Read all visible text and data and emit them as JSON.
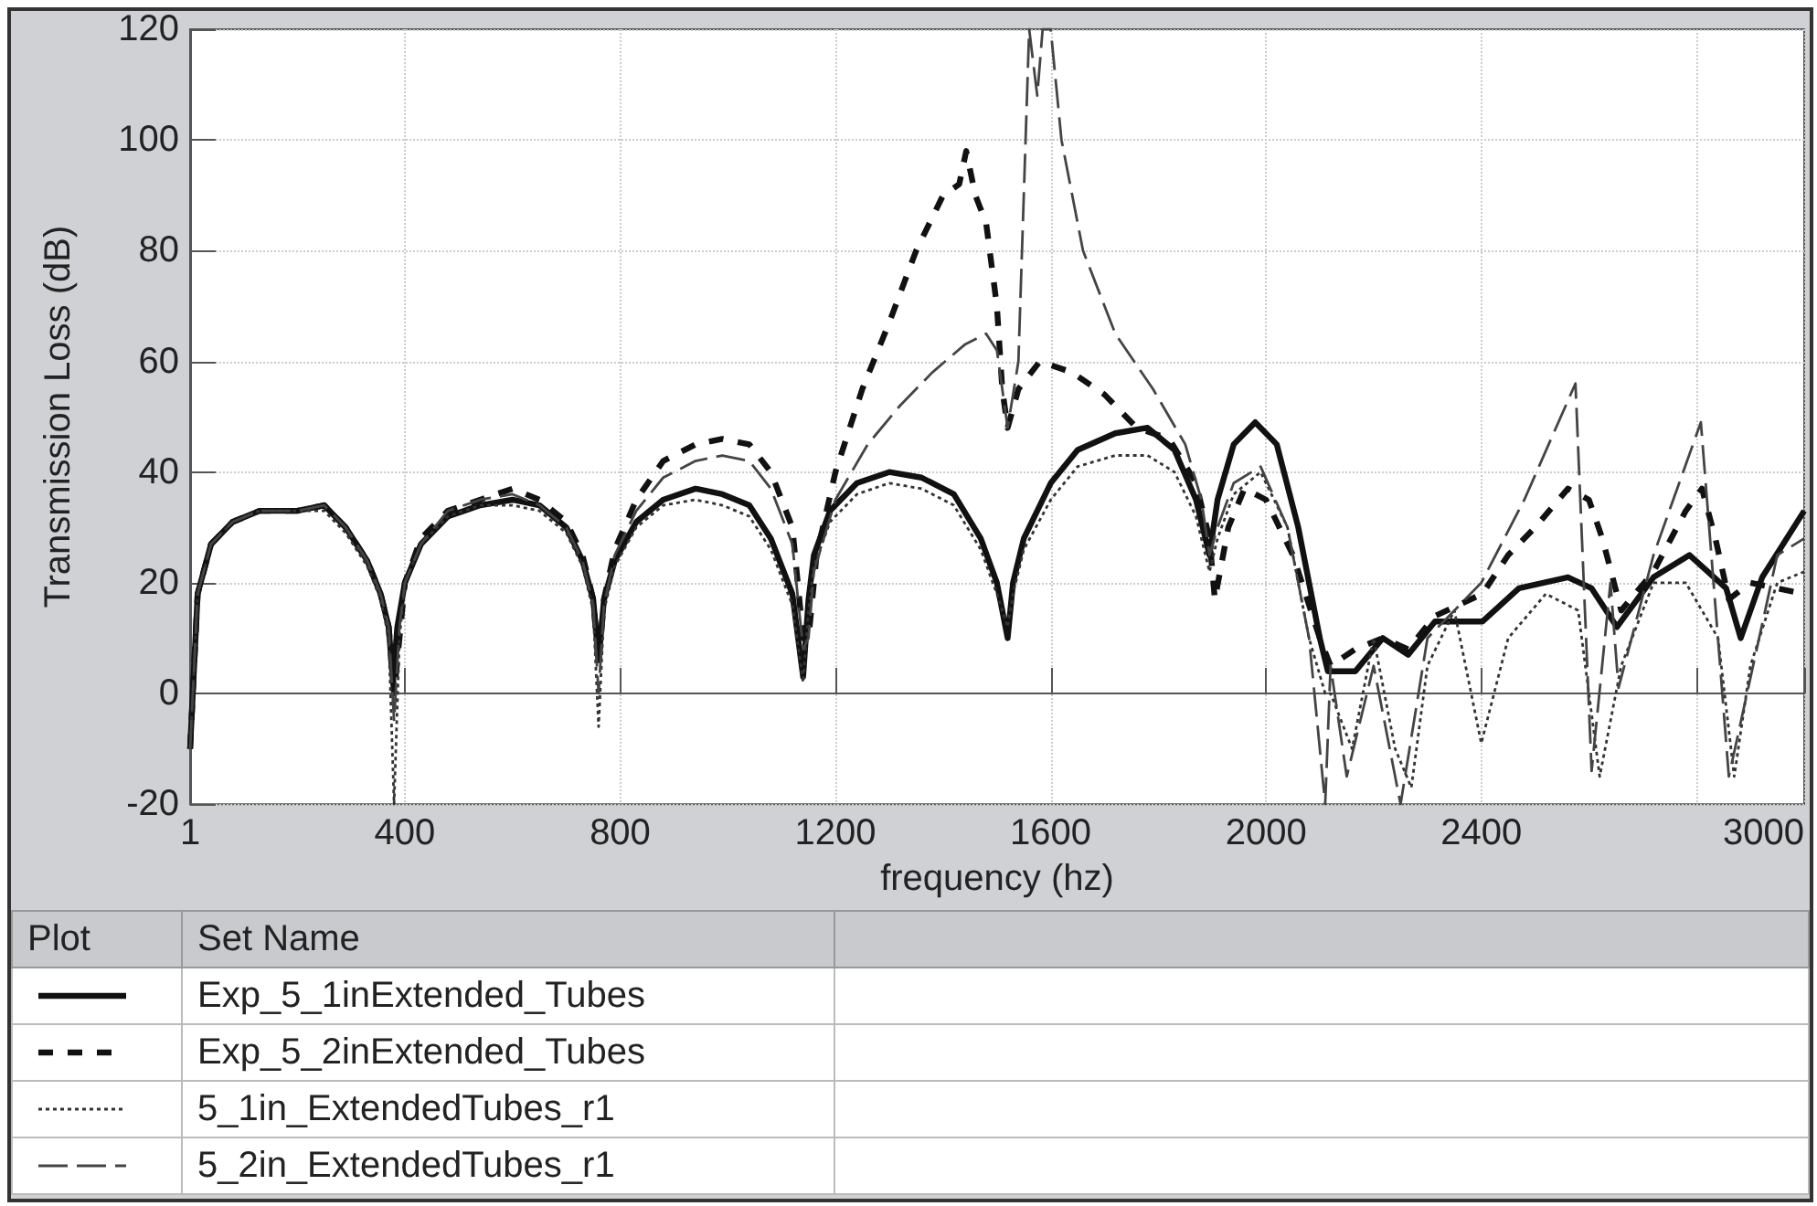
{
  "chart_data": {
    "type": "line",
    "xlabel": "frequency (hz)",
    "ylabel": "Transmission Loss (dB)",
    "legend_title": "Set Name",
    "annotations": [
      "Plot"
    ],
    "xlim": [
      1,
      3000
    ],
    "xticks": [
      1,
      400,
      800,
      1200,
      1600,
      2000,
      2400,
      {
        "value": 2800,
        "label": null
      },
      3000
    ],
    "ylim": [
      -20,
      120
    ],
    "yticks": [
      -20,
      0,
      20,
      40,
      60,
      80,
      100,
      120
    ],
    "grid": true,
    "legend": "bottom",
    "marker": "none",
    "series": [
      {
        "name": "Exp_5_1inExtended_Tubes",
        "color": "#111111",
        "line_style": "solid",
        "x": [
          1,
          15,
          40,
          80,
          130,
          200,
          250,
          290,
          330,
          355,
          370,
          378,
          386,
          400,
          430,
          480,
          540,
          600,
          650,
          700,
          730,
          750,
          760,
          770,
          790,
          830,
          880,
          940,
          990,
          1040,
          1080,
          1120,
          1140,
          1150,
          1160,
          1190,
          1240,
          1300,
          1360,
          1420,
          1470,
          1500,
          1520,
          1530,
          1550,
          1600,
          1650,
          1720,
          1780,
          1830,
          1870,
          1895,
          1910,
          1940,
          1980,
          2020,
          2060,
          2100,
          2115,
          2166,
          2217,
          2264,
          2314,
          2402,
          2470,
          2561,
          2605,
          2652,
          2720,
          2787,
          2855,
          2882,
          2922,
          3000
        ],
        "values": [
          -10,
          18,
          27,
          31,
          33,
          33,
          34,
          30,
          24,
          18,
          12,
          2,
          12,
          20,
          27,
          32,
          34,
          35,
          34,
          30,
          24,
          17,
          6,
          17,
          24,
          31,
          35,
          37,
          36,
          34,
          28,
          18,
          3,
          17,
          25,
          33,
          38,
          40,
          39,
          36,
          28,
          20,
          10,
          20,
          28,
          38,
          44,
          47,
          48,
          44,
          35,
          25,
          35,
          45,
          49,
          45,
          30,
          10,
          4,
          4,
          10,
          7,
          13,
          13,
          19,
          21,
          19,
          12,
          21,
          25,
          19,
          10,
          21,
          33
        ]
      },
      {
        "name": "Exp_5_2inExtended_Tubes",
        "color": "#111111",
        "line_style": "dashed",
        "x": [
          1,
          15,
          40,
          80,
          130,
          200,
          250,
          290,
          330,
          355,
          370,
          380,
          390,
          400,
          430,
          480,
          540,
          600,
          650,
          700,
          730,
          750,
          760,
          770,
          790,
          830,
          880,
          940,
          990,
          1040,
          1080,
          1120,
          1140,
          1150,
          1165,
          1200,
          1250,
          1300,
          1350,
          1400,
          1430,
          1443,
          1460,
          1480,
          1500,
          1510,
          1520,
          1540,
          1580,
          1640,
          1700,
          1760,
          1820,
          1870,
          1895,
          1905,
          1930,
          1960,
          2000,
          2050,
          2100,
          2120,
          2166,
          2217,
          2264,
          2314,
          2402,
          2450,
          2500,
          2561,
          2600,
          2625,
          2660,
          2720,
          2780,
          2810,
          2835,
          2860,
          2900,
          2950,
          3000
        ],
        "values": [
          -10,
          18,
          27,
          31,
          33,
          33,
          34,
          30,
          24,
          18,
          12,
          0,
          10,
          20,
          28,
          33,
          35,
          37,
          35,
          31,
          25,
          17,
          5,
          17,
          26,
          35,
          42,
          45,
          46,
          45,
          40,
          30,
          10,
          10,
          25,
          40,
          55,
          67,
          80,
          90,
          92,
          98,
          90,
          85,
          70,
          55,
          48,
          55,
          60,
          58,
          54,
          48,
          46,
          38,
          28,
          17,
          30,
          37,
          35,
          25,
          10,
          5,
          8,
          10,
          8,
          14,
          18,
          25,
          30,
          37,
          35,
          28,
          15,
          22,
          33,
          37,
          28,
          17,
          20,
          19,
          18
        ]
      },
      {
        "name": "5_1in_ExtendedTubes_r1",
        "color": "#333333",
        "line_style": "dotted",
        "x": [
          1,
          15,
          40,
          80,
          130,
          200,
          250,
          290,
          330,
          355,
          370,
          380,
          390,
          400,
          430,
          480,
          540,
          600,
          650,
          700,
          730,
          750,
          760,
          770,
          790,
          830,
          880,
          940,
          990,
          1040,
          1080,
          1120,
          1140,
          1150,
          1160,
          1190,
          1240,
          1300,
          1360,
          1420,
          1470,
          1500,
          1520,
          1530,
          1550,
          1600,
          1650,
          1720,
          1780,
          1830,
          1870,
          1895,
          1910,
          1940,
          1990,
          2040,
          2080,
          2110,
          2120,
          2160,
          2200,
          2240,
          2270,
          2300,
          2350,
          2400,
          2450,
          2520,
          2580,
          2620,
          2660,
          2720,
          2780,
          2840,
          2870,
          2900,
          2950,
          3000
        ],
        "values": [
          -10,
          18,
          27,
          31,
          33,
          33,
          33,
          29,
          23,
          17,
          10,
          -20,
          10,
          20,
          27,
          32,
          34,
          34,
          33,
          29,
          23,
          15,
          -6,
          15,
          23,
          30,
          34,
          35,
          34,
          32,
          26,
          16,
          2,
          15,
          23,
          31,
          36,
          38,
          37,
          34,
          26,
          18,
          12,
          18,
          26,
          35,
          41,
          43,
          43,
          40,
          32,
          22,
          28,
          36,
          40,
          30,
          10,
          0,
          0,
          -10,
          10,
          -10,
          -17,
          5,
          15,
          -9,
          10,
          18,
          15,
          -15,
          5,
          20,
          20,
          10,
          -15,
          5,
          20,
          22
        ]
      },
      {
        "name": "5_2in_ExtendedTubes_r1",
        "color": "#444444",
        "line_style": "dashed",
        "x": [
          1,
          15,
          40,
          80,
          130,
          200,
          250,
          290,
          330,
          355,
          370,
          380,
          390,
          400,
          430,
          480,
          540,
          600,
          650,
          700,
          730,
          750,
          760,
          770,
          790,
          830,
          880,
          940,
          990,
          1040,
          1080,
          1120,
          1140,
          1150,
          1160,
          1200,
          1260,
          1320,
          1380,
          1440,
          1480,
          1500,
          1510,
          1520,
          1540,
          1560,
          1575,
          1585,
          1600,
          1620,
          1660,
          1720,
          1790,
          1850,
          1880,
          1895,
          1910,
          1940,
          1990,
          2040,
          2080,
          2110,
          2120,
          2150,
          2200,
          2250,
          2300,
          2350,
          2400,
          2480,
          2575,
          2605,
          2640,
          2655,
          2720,
          2808,
          2860,
          2950,
          3000
        ],
        "values": [
          -10,
          18,
          27,
          31,
          33,
          33,
          34,
          30,
          24,
          18,
          12,
          -5,
          12,
          20,
          27,
          33,
          35,
          36,
          34,
          30,
          24,
          16,
          0,
          16,
          25,
          33,
          39,
          42,
          43,
          42,
          37,
          27,
          8,
          10,
          22,
          35,
          45,
          52,
          58,
          63,
          65,
          62,
          55,
          48,
          60,
          120,
          108,
          120,
          120,
          100,
          80,
          65,
          55,
          45,
          35,
          25,
          30,
          38,
          41,
          30,
          10,
          -20,
          5,
          -15,
          5,
          -20,
          10,
          15,
          20,
          35,
          56,
          -14,
          20,
          1,
          25,
          49,
          -15,
          25,
          28
        ]
      }
    ]
  }
}
